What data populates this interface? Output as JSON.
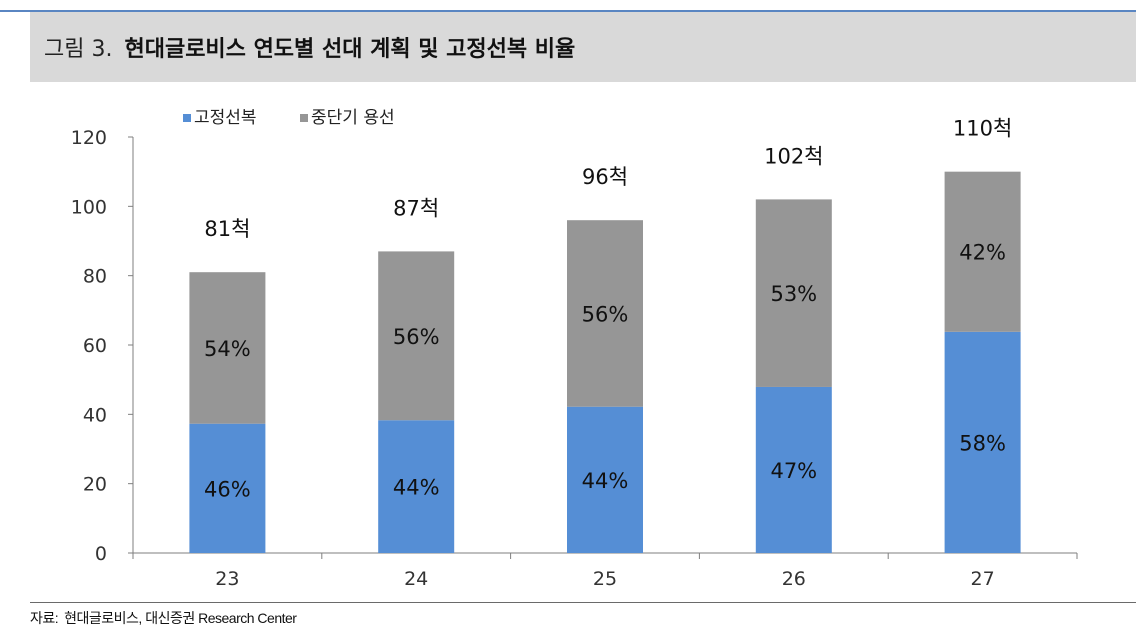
{
  "header": {
    "figure_number": "그림 3.",
    "title": "현대글로비스 연도별 선대 계획 및 고정선복 비율"
  },
  "source": {
    "label": "자료:",
    "text": "현대글로비스, 대신증권 Research Center"
  },
  "colors": {
    "fixed": "#558ed5",
    "short": "#969696",
    "axis": "#7f7f7f",
    "header_bg": "#d9d9d9",
    "header_rule": "#5a86c2"
  },
  "chart_data": {
    "type": "bar",
    "stacked": true,
    "categories": [
      "23",
      "24",
      "25",
      "26",
      "27"
    ],
    "series": [
      {
        "name": "고정선복",
        "values": [
          37.3,
          38.3,
          42.2,
          47.9,
          63.8
        ],
        "labels": [
          "46%",
          "44%",
          "44%",
          "47%",
          "58%"
        ]
      },
      {
        "name": "중단기 용선",
        "values": [
          43.7,
          48.7,
          53.8,
          54.1,
          46.2
        ],
        "labels": [
          "54%",
          "56%",
          "56%",
          "53%",
          "42%"
        ]
      }
    ],
    "totals": [
      81,
      87,
      96,
      102,
      110
    ],
    "total_labels": [
      "81척",
      "87척",
      "96척",
      "102척",
      "110척"
    ],
    "ylim": [
      0,
      120
    ],
    "yticks": [
      "0",
      "20",
      "40",
      "60",
      "80",
      "100",
      "120"
    ],
    "legend": {
      "position": "top-left",
      "items": [
        "고정선복",
        "중단기 용선"
      ]
    },
    "grid": false
  }
}
